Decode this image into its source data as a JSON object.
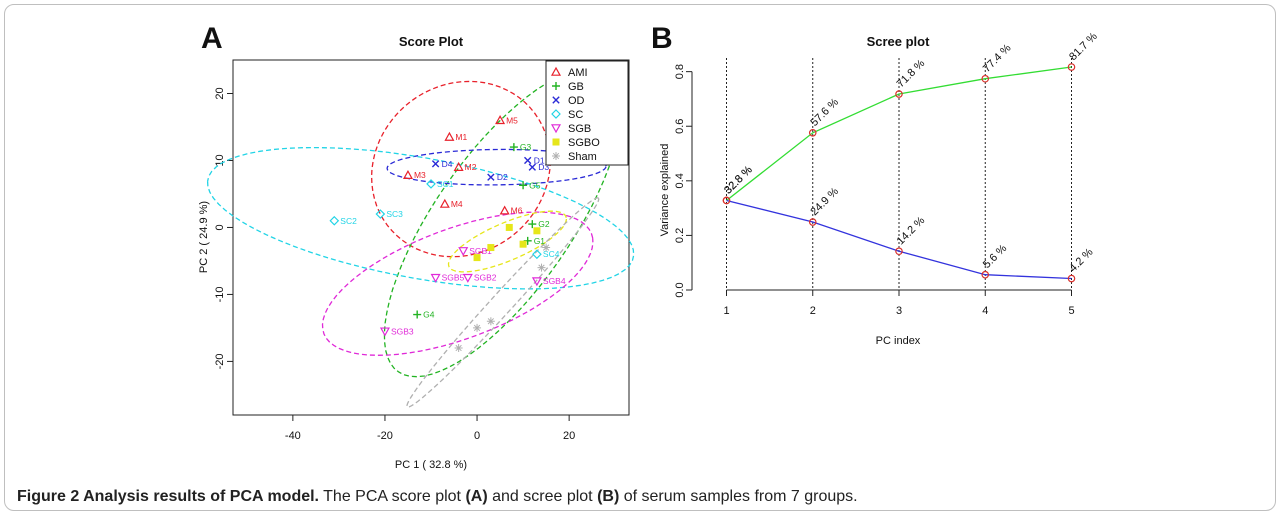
{
  "caption": {
    "title": "Figure 2 Analysis results of PCA model.",
    "text_1": " The PCA score plot ",
    "ref_a": "(A)",
    "text_2": " and scree plot ",
    "ref_b": "(B)",
    "text_3": " of serum samples from 7 groups."
  },
  "chart_data": [
    {
      "panel_label": "A",
      "type": "scatter",
      "title": "Score Plot",
      "xlabel": "PC 1 ( 32.8 %)",
      "ylabel": "PC 2 ( 24.9 %)",
      "xlim": [
        -53,
        33
      ],
      "ylim": [
        -28,
        25
      ],
      "xticks": [
        -40,
        -20,
        0,
        20
      ],
      "yticks": [
        -20,
        -10,
        0,
        10,
        20
      ],
      "legend_position": "top-right",
      "series": [
        {
          "name": "AMI",
          "marker": "triangle-up",
          "color": "#e8212b",
          "points": [
            {
              "label": "M1",
              "x": -6,
              "y": 13.5
            },
            {
              "label": "M5",
              "x": 5,
              "y": 16
            },
            {
              "label": "M2",
              "x": -4,
              "y": 9
            },
            {
              "label": "M3",
              "x": -15,
              "y": 7.8
            },
            {
              "label": "M4",
              "x": -7,
              "y": 3.5
            },
            {
              "label": "M6",
              "x": 6,
              "y": 2.5
            }
          ]
        },
        {
          "name": "GB",
          "marker": "plus",
          "color": "#22b322",
          "points": [
            {
              "label": "G3",
              "x": 8,
              "y": 12
            },
            {
              "label": "G5",
              "x": 10,
              "y": 6.3
            },
            {
              "label": "G1",
              "x": 11,
              "y": -2
            },
            {
              "label": "G4",
              "x": -13,
              "y": -13
            },
            {
              "label": "G2",
              "x": 12,
              "y": 0.5
            }
          ]
        },
        {
          "name": "OD",
          "marker": "cross",
          "color": "#2a2ad6",
          "points": [
            {
              "label": "D4",
              "x": -9,
              "y": 9.5
            },
            {
              "label": "D1",
              "x": 11,
              "y": 10
            },
            {
              "label": "D2",
              "x": 3,
              "y": 7.5
            },
            {
              "label": "D3",
              "x": 12,
              "y": 9
            }
          ]
        },
        {
          "name": "SC",
          "marker": "diamond",
          "color": "#22d4e6",
          "points": [
            {
              "label": "SC1",
              "x": -10,
              "y": 6.5
            },
            {
              "label": "SC3",
              "x": -21,
              "y": 2
            },
            {
              "label": "SC2",
              "x": -31,
              "y": 1
            },
            {
              "label": "SC4",
              "x": 13,
              "y": -4
            }
          ]
        },
        {
          "name": "SGB",
          "marker": "triangle-down",
          "color": "#e02ad8",
          "points": [
            {
              "label": "SGB1",
              "x": -3,
              "y": -3.5
            },
            {
              "label": "SGB5",
              "x": -9,
              "y": -7.5
            },
            {
              "label": "SGB2",
              "x": -2,
              "y": -7.5
            },
            {
              "label": "SGB3",
              "x": -20,
              "y": -15.5
            },
            {
              "label": "SGB4",
              "x": 13,
              "y": -8
            }
          ]
        },
        {
          "name": "SGBO",
          "marker": "square",
          "color": "#e6e61a",
          "points": [
            {
              "label": "",
              "x": 0,
              "y": -4.5
            },
            {
              "label": "",
              "x": 3,
              "y": -3
            },
            {
              "label": "",
              "x": 10,
              "y": -2.5
            },
            {
              "label": "",
              "x": 13,
              "y": -0.5
            },
            {
              "label": "",
              "x": 7,
              "y": 0
            }
          ]
        },
        {
          "name": "Sham",
          "marker": "asterisk",
          "color": "#b0b0b0",
          "points": [
            {
              "label": "",
              "x": 0,
              "y": -15
            },
            {
              "label": "",
              "x": -4,
              "y": -18
            },
            {
              "label": "",
              "x": 14,
              "y": -6
            },
            {
              "label": "",
              "x": 15,
              "y": -3
            },
            {
              "label": "",
              "x": 3,
              "y": -14
            }
          ]
        }
      ]
    },
    {
      "panel_label": "B",
      "type": "line",
      "title": "Scree plot",
      "xlabel": "PC index",
      "ylabel": "Variance explained",
      "x": [
        1,
        2,
        3,
        4,
        5
      ],
      "xlim": [
        0.6,
        5.4
      ],
      "ylim": [
        0,
        0.85
      ],
      "yticks": [
        0.0,
        0.2,
        0.4,
        0.6,
        0.8
      ],
      "vertical_gridlines": true,
      "series": [
        {
          "name": "",
          "color": "#33dd33",
          "values": [
            0.328,
            0.576,
            0.718,
            0.774,
            0.817
          ],
          "labels": [
            "32.8 %",
            "57.6 %",
            "71.8 %",
            "77.4 %",
            "81.7 %"
          ]
        },
        {
          "name": "",
          "color": "#3333dd",
          "values": [
            0.328,
            0.249,
            0.142,
            0.056,
            0.042
          ],
          "labels": [
            "32.8 %",
            "24.9 %",
            "14.2 %",
            "5.6 %",
            "4.2 %"
          ]
        }
      ]
    }
  ]
}
